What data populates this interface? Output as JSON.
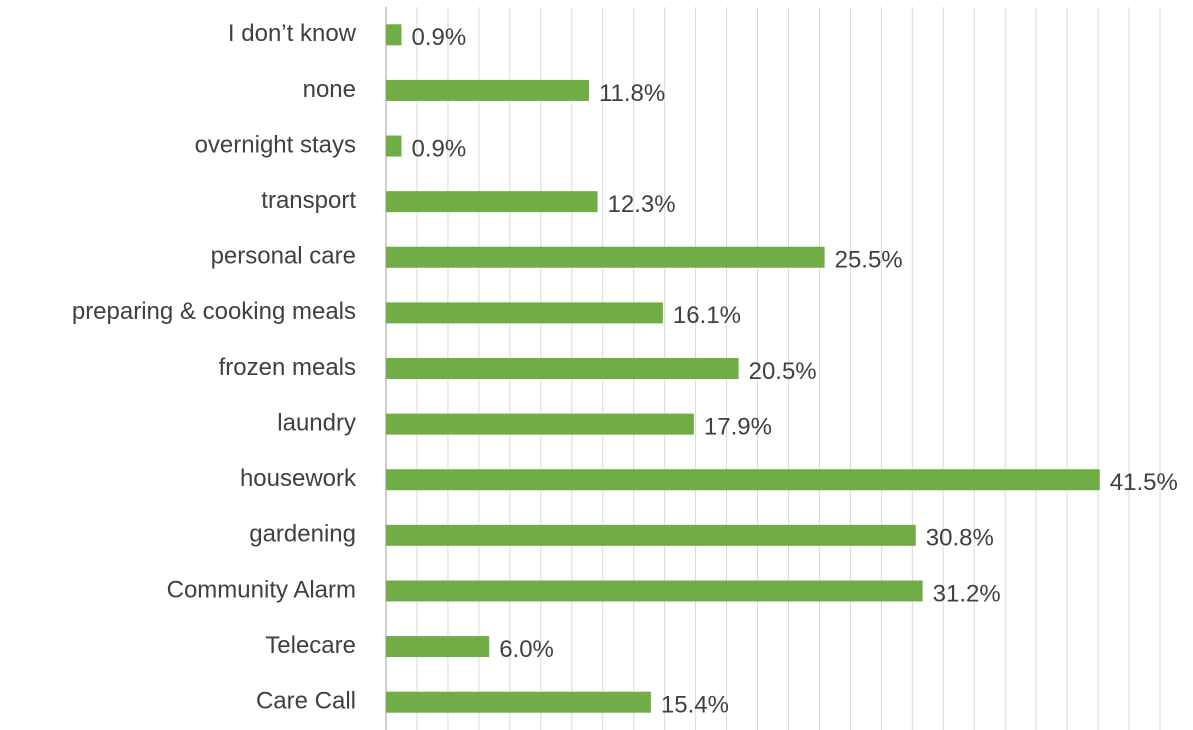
{
  "chart_data": {
    "type": "bar",
    "orientation": "horizontal",
    "categories": [
      "I don’t know",
      "none",
      "overnight stays",
      "transport",
      "personal care",
      "preparing & cooking meals",
      "frozen meals",
      "laundry",
      "housework",
      "gardening",
      "Community Alarm",
      "Telecare",
      "Care Call"
    ],
    "values": [
      0.9,
      11.8,
      0.9,
      12.3,
      25.5,
      16.1,
      20.5,
      17.9,
      41.5,
      30.8,
      31.2,
      6.0,
      15.4
    ],
    "value_labels": [
      "0.9%",
      "11.8%",
      "0.9%",
      "12.3%",
      "25.5%",
      "16.1%",
      "20.5%",
      "17.9%",
      "41.5%",
      "30.8%",
      "31.2%",
      "6.0%",
      "15.4%"
    ],
    "color": "#70ad47",
    "xlim": [
      0,
      45
    ],
    "xticks": [
      0,
      1.8,
      3.6,
      5.4,
      7.2,
      9,
      10.8,
      12.6,
      14.4,
      16.2,
      18,
      19.8,
      21.6,
      23.4,
      25.2,
      27,
      28.8,
      30.6,
      32.4,
      34.2,
      36,
      37.8,
      39.6,
      41.4,
      43.2,
      45
    ],
    "grid": true
  }
}
